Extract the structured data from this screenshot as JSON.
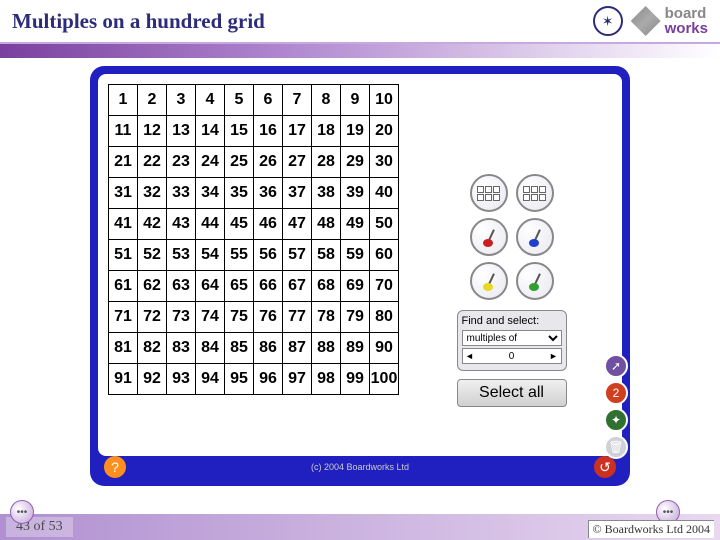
{
  "header": {
    "title": "Multiples on a hundred grid",
    "logo_board": "board",
    "logo_works": "works"
  },
  "grid": {
    "rows": [
      [
        "1",
        "2",
        "3",
        "4",
        "5",
        "6",
        "7",
        "8",
        "9",
        "10"
      ],
      [
        "11",
        "12",
        "13",
        "14",
        "15",
        "16",
        "17",
        "18",
        "19",
        "20"
      ],
      [
        "21",
        "22",
        "23",
        "24",
        "25",
        "26",
        "27",
        "28",
        "29",
        "30"
      ],
      [
        "31",
        "32",
        "33",
        "34",
        "35",
        "36",
        "37",
        "38",
        "39",
        "40"
      ],
      [
        "41",
        "42",
        "43",
        "44",
        "45",
        "46",
        "47",
        "48",
        "49",
        "50"
      ],
      [
        "51",
        "52",
        "53",
        "54",
        "55",
        "56",
        "57",
        "58",
        "59",
        "60"
      ],
      [
        "61",
        "62",
        "63",
        "64",
        "65",
        "66",
        "67",
        "68",
        "69",
        "70"
      ],
      [
        "71",
        "72",
        "73",
        "74",
        "75",
        "76",
        "77",
        "78",
        "79",
        "80"
      ],
      [
        "81",
        "82",
        "83",
        "84",
        "85",
        "86",
        "87",
        "88",
        "89",
        "90"
      ],
      [
        "91",
        "92",
        "93",
        "94",
        "95",
        "96",
        "97",
        "98",
        "99",
        "100"
      ]
    ],
    "cell_border": "#000000",
    "cell_bg": "#ffffff",
    "font_size": 16
  },
  "tools": {
    "brush_colors": [
      "#cc2020",
      "#2040cc",
      "#e8d820",
      "#30a030"
    ],
    "find_label": "Find and select:",
    "dropdown_value": "multiples of",
    "spinner_value": "0",
    "select_all": "Select all"
  },
  "side": {
    "buttons": [
      {
        "name": "magnify-icon",
        "bg": "#7050a0",
        "glyph": "➚"
      },
      {
        "name": "timer-icon",
        "bg": "#d04020",
        "glyph": "2"
      },
      {
        "name": "sparkle-icon",
        "bg": "#307030",
        "glyph": "✦"
      },
      {
        "name": "trash-icon",
        "bg": "#d0d0d8",
        "glyph": "🗑"
      }
    ]
  },
  "panel_footer": {
    "help": "?",
    "copyright": "(c) 2004 Boardworks Ltd",
    "reset": "↺"
  },
  "footer": {
    "page": "43 of 53",
    "copyright": "© Boardworks Ltd 2004"
  },
  "colors": {
    "panel_bg": "#2020c0",
    "accent": "#7a3f9e",
    "header_line": "#c9a8e0"
  }
}
